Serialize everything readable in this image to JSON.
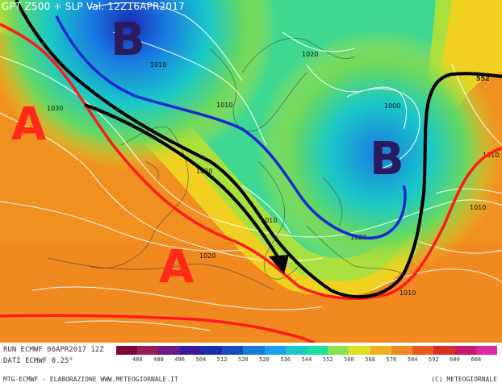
{
  "header": {
    "title": "GPT Z500 + SLP Val. 12Z16APR2017"
  },
  "pressure_centers": [
    {
      "type": "low",
      "label": "B",
      "color": "#2a1a5e"
    },
    {
      "type": "low",
      "label": "B",
      "color": "#2a1a5e"
    },
    {
      "type": "high",
      "label": "A",
      "color": "#ff2a1a"
    },
    {
      "type": "high",
      "label": "A",
      "color": "#ff2a1a"
    }
  ],
  "isobar_labels": [
    "1010",
    "1020",
    "1010",
    "1030",
    "1020",
    "1000",
    "1020",
    "1010",
    "1020",
    "1010",
    "1010",
    "1010"
  ],
  "geopotential_label": "552",
  "footer": {
    "run": "RUN ECMWF 06APR2017 12Z",
    "dati": "DATI ECMWF 0.25°",
    "left_credit": "MTG-ECMWF - ELABORAZIONE WWW.METEOGIORNALE.IT",
    "right_credit": "(C) METEOGIORNALE"
  },
  "colorbar": {
    "ticks": [
      "480",
      "488",
      "496",
      "504",
      "512",
      "520",
      "528",
      "536",
      "544",
      "552",
      "560",
      "568",
      "576",
      "584",
      "592",
      "600",
      "608"
    ],
    "colors": [
      "#7a0a3a",
      "#9a1a5a",
      "#6a1a8a",
      "#3a1aa0",
      "#1a2ab4",
      "#1a4ac8",
      "#1a7ae0",
      "#1aa0f0",
      "#1ac8c8",
      "#1ae0a0",
      "#8ae04a",
      "#e0e020",
      "#f0b020",
      "#f08a20",
      "#e85a20",
      "#d83020",
      "#c81a6a",
      "#e02aa0"
    ]
  },
  "colors": {
    "arrow": "#000000",
    "trough_line": "#1a2ad0",
    "ridge_line": "#ff1a1a"
  }
}
